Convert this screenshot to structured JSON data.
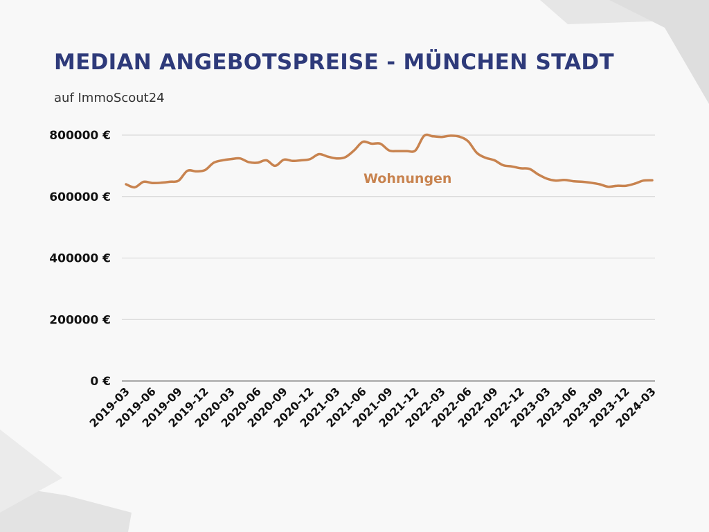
{
  "title": "MEDIAN ANGEBOTSPREISE - MÜNCHEN STADT",
  "subtitle": "auf ImmoScout24",
  "colors": {
    "title": "#2e3a7a",
    "line": "#c8834f",
    "grid": "#d2d2d2",
    "axis": "#8a8a8a",
    "background": "#f8f8f8",
    "shape": "#e3e3e3"
  },
  "chart_data": {
    "type": "line",
    "title": "MEDIAN ANGEBOTSPREISE - MÜNCHEN STADT",
    "subtitle": "auf ImmoScout24",
    "xlabel": "",
    "ylabel": "",
    "ylim": [
      0,
      800000
    ],
    "yticks": [
      0,
      200000,
      400000,
      600000,
      800000
    ],
    "ytick_labels": [
      "0 €",
      "200000 €",
      "400000 €",
      "600000 €",
      "800000 €"
    ],
    "x_tick_labels": [
      "2019-03",
      "2019-06",
      "2019-09",
      "2019-12",
      "2020-03",
      "2020-06",
      "2020-09",
      "2020-12",
      "2021-03",
      "2021-06",
      "2021-09",
      "2021-12",
      "2022-03",
      "2022-06",
      "2022-09",
      "2022-12",
      "2023-03",
      "2023-06",
      "2023-09",
      "2023-12",
      "2024-03"
    ],
    "grid": true,
    "legend": "inline-label",
    "x": [
      "2019-03",
      "2019-04",
      "2019-05",
      "2019-06",
      "2019-07",
      "2019-08",
      "2019-09",
      "2019-10",
      "2019-11",
      "2019-12",
      "2020-01",
      "2020-02",
      "2020-03",
      "2020-04",
      "2020-05",
      "2020-06",
      "2020-07",
      "2020-08",
      "2020-09",
      "2020-10",
      "2020-11",
      "2020-12",
      "2021-01",
      "2021-02",
      "2021-03",
      "2021-04",
      "2021-05",
      "2021-06",
      "2021-07",
      "2021-08",
      "2021-09",
      "2021-10",
      "2021-11",
      "2021-12",
      "2022-01",
      "2022-02",
      "2022-03",
      "2022-04",
      "2022-05",
      "2022-06",
      "2022-07",
      "2022-08",
      "2022-09",
      "2022-10",
      "2022-11",
      "2022-12",
      "2023-01",
      "2023-02",
      "2023-03",
      "2023-04",
      "2023-05",
      "2023-06",
      "2023-07",
      "2023-08",
      "2023-09",
      "2023-10",
      "2023-11",
      "2023-12",
      "2024-01",
      "2024-02",
      "2024-03"
    ],
    "series": [
      {
        "name": "Wohnungen",
        "values": [
          640000,
          630000,
          648000,
          644000,
          645000,
          648000,
          652000,
          684000,
          682000,
          686000,
          710000,
          718000,
          722000,
          724000,
          712000,
          710000,
          718000,
          700000,
          720000,
          716000,
          718000,
          722000,
          738000,
          730000,
          724000,
          728000,
          750000,
          778000,
          772000,
          772000,
          750000,
          748000,
          748000,
          750000,
          798000,
          796000,
          794000,
          798000,
          795000,
          780000,
          742000,
          726000,
          718000,
          702000,
          698000,
          692000,
          690000,
          672000,
          658000,
          652000,
          654000,
          650000,
          648000,
          645000,
          640000,
          632000,
          635000,
          635000,
          642000,
          652000,
          653000
        ]
      }
    ]
  }
}
